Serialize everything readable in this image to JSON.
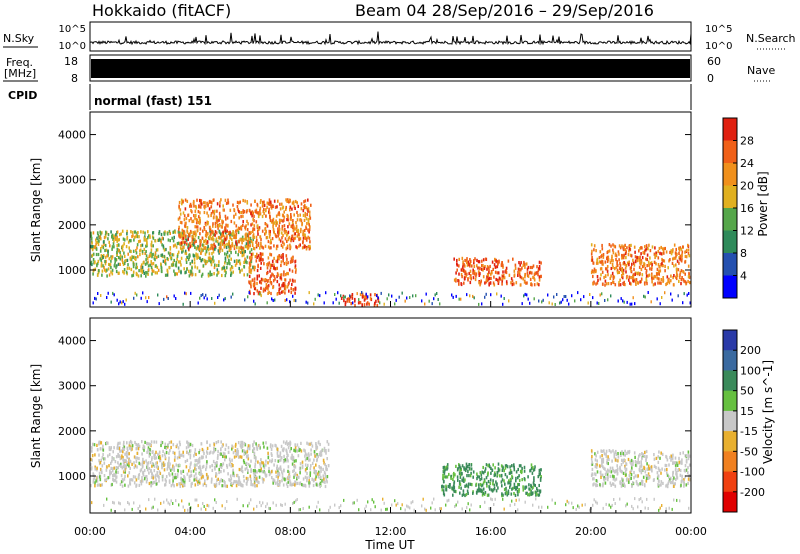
{
  "header": {
    "station": "Hokkaido (fitACF)",
    "beam_range": "Beam 04  28/Sep/2016 – 29/Sep/2016"
  },
  "top_panels": {
    "nsky_label": "N.Sky",
    "nsky_ticks": [
      "10^5",
      "10^0"
    ],
    "nsearch_label": "N.Search",
    "nsearch_ticks": [
      "10^5",
      "10^0"
    ],
    "freq_label_1": "Freq.",
    "freq_label_2": "[MHz]",
    "freq_ticks": [
      "18",
      "8"
    ],
    "nave_label": "Nave",
    "nave_ticks": [
      "60",
      "0"
    ],
    "cpid_label": "CPID",
    "cpid_value": "normal (fast) 151"
  },
  "chart_data": [
    {
      "type": "heatmap",
      "name": "power",
      "ylabel": "Slant Range [km]",
      "yticks": [
        "1000",
        "2000",
        "3000",
        "4000"
      ],
      "ylim": [
        180,
        4500
      ],
      "colorbar_label": "Power [dB]",
      "colorbar_ticks": [
        "4",
        "8",
        "12",
        "16",
        "20",
        "24",
        "28"
      ],
      "colorbar_colors": [
        "#0000ff",
        "#2450b0",
        "#2e8a5a",
        "#55a64a",
        "#e0b020",
        "#f0901c",
        "#f06018",
        "#e02010"
      ],
      "regions": [
        {
          "t0": 0.0,
          "t1": 6.5,
          "r0": 900,
          "r1": 1900,
          "dominant": 16
        },
        {
          "t0": 3.5,
          "t1": 8.8,
          "r0": 1500,
          "r1": 2600,
          "dominant": 24
        },
        {
          "t0": 6.3,
          "t1": 8.2,
          "r0": 500,
          "r1": 1400,
          "dominant": 26
        },
        {
          "t0": 10.0,
          "t1": 11.5,
          "r0": 200,
          "r1": 500,
          "dominant": 28
        },
        {
          "t0": 14.5,
          "t1": 18.0,
          "r0": 700,
          "r1": 1300,
          "dominant": 26
        },
        {
          "t0": 20.0,
          "t1": 24.0,
          "r0": 700,
          "r1": 1600,
          "dominant": 24
        }
      ]
    },
    {
      "type": "heatmap",
      "name": "velocity",
      "ylabel": "Slant Range [km]",
      "yticks": [
        "1000",
        "2000",
        "3000",
        "4000"
      ],
      "ylim": [
        180,
        4500
      ],
      "colorbar_label": "Velocity [m s^-1]",
      "colorbar_ticks": [
        "200",
        "100",
        "50",
        "15",
        "-15",
        "-50",
        "-100",
        "-200"
      ],
      "colorbar_colors": [
        "#2a3aa8",
        "#3a6aa0",
        "#3a8a5a",
        "#66c040",
        "#c8c8c8",
        "#e8b030",
        "#f08020",
        "#f04010",
        "#e00000"
      ],
      "regions": [
        {
          "t0": 0.0,
          "t1": 9.5,
          "r0": 800,
          "r1": 1800,
          "dominant": 0
        },
        {
          "t0": 14.0,
          "t1": 18.0,
          "r0": 600,
          "r1": 1300,
          "dominant": 60
        },
        {
          "t0": 20.0,
          "t1": 24.0,
          "r0": 800,
          "r1": 1600,
          "dominant": 0
        }
      ]
    }
  ],
  "time_axis": {
    "xlabel": "Time UT",
    "ticks": [
      "00:00",
      "04:00",
      "08:00",
      "12:00",
      "16:00",
      "20:00",
      "00:00"
    ],
    "xlim_hours": [
      0,
      24
    ]
  }
}
